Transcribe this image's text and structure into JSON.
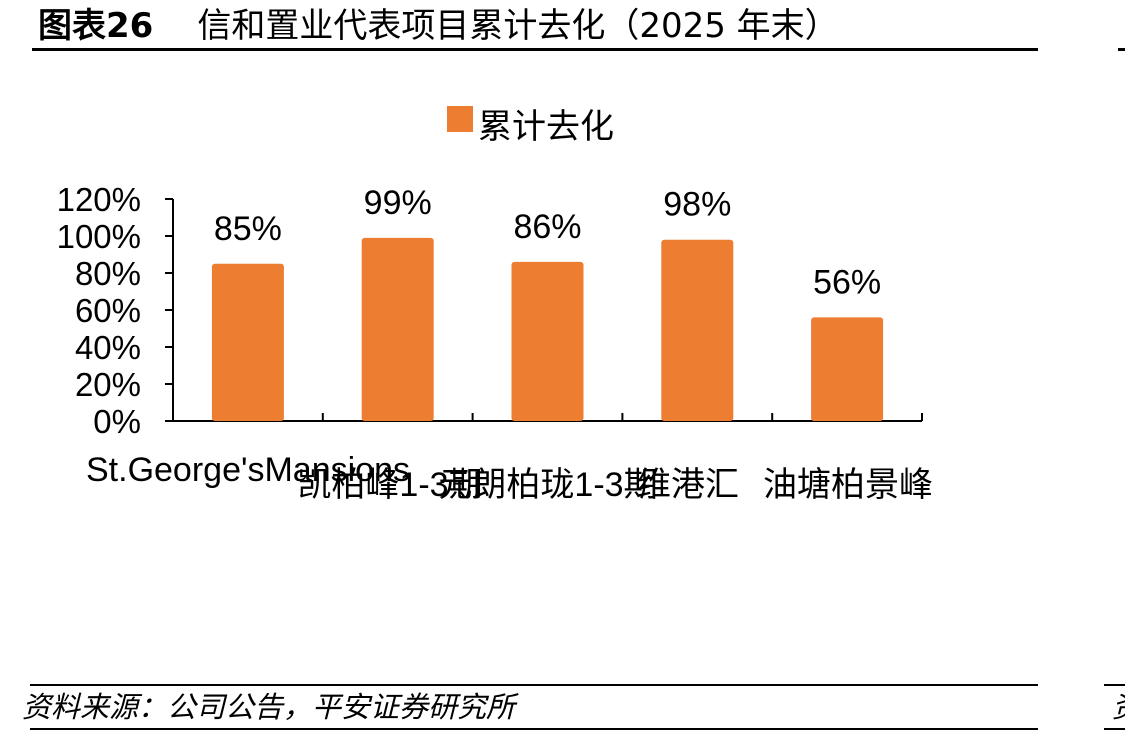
{
  "header": {
    "figure_no": "图表26",
    "title": "信和置业代表项目累计去化（2025 年末）"
  },
  "footer": {
    "source": "资料来源：公司公告，平安证券研究所",
    "side_glyph": "资"
  },
  "chart_data": {
    "type": "bar",
    "title": "",
    "xlabel": "",
    "ylabel": "",
    "categories": [
      "St.George'sMansions",
      "凯柏峰1-3期",
      "元朗柏珑1-3期",
      "维港汇",
      "油塘柏景峰"
    ],
    "series": [
      {
        "name": "累计去化",
        "values": [
          85,
          99,
          86,
          98,
          56
        ],
        "labels": [
          "85%",
          "99%",
          "86%",
          "98%",
          "56%"
        ]
      }
    ],
    "ylim": [
      0,
      120
    ],
    "yticks": [
      0,
      20,
      40,
      60,
      80,
      100,
      120
    ],
    "ytick_labels": [
      "0%",
      "20%",
      "40%",
      "60%",
      "80%",
      "100%",
      "120%"
    ],
    "grid": false,
    "legend": "top-center",
    "colors": {
      "bar": "#ED7D31",
      "axis": "#000000"
    }
  }
}
